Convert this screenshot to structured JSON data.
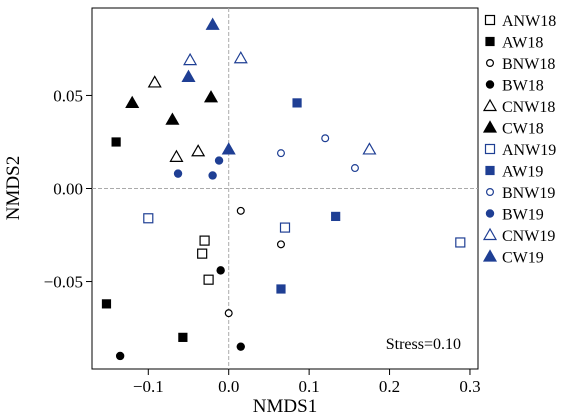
{
  "chart_data": {
    "type": "scatter",
    "title": "",
    "xlabel": "NMDS1",
    "ylabel": "NMDS2",
    "xlim": [
      -0.17,
      0.31
    ],
    "ylim": [
      -0.097,
      0.097
    ],
    "xticks": [
      -0.1,
      0.0,
      0.1,
      0.2,
      0.3
    ],
    "xtick_labels": [
      "−0.1",
      "0.0",
      "0.1",
      "0.2",
      "0.3"
    ],
    "yticks": [
      -0.05,
      0.0,
      0.05
    ],
    "ytick_labels": [
      "−0.05",
      "0.00",
      "0.05"
    ],
    "grid": false,
    "reference_lines": [
      0,
      0
    ],
    "legend_position": "right",
    "annotation": "Stress=0.10",
    "series": [
      {
        "name": "ANW18",
        "marker": "square",
        "filled": false,
        "color": "#000000",
        "points": [
          [
            -0.025,
            -0.049
          ],
          [
            -0.033,
            -0.035
          ],
          [
            -0.03,
            -0.028
          ]
        ]
      },
      {
        "name": "AW18",
        "marker": "square",
        "filled": true,
        "color": "#000000",
        "points": [
          [
            -0.152,
            -0.062
          ],
          [
            -0.14,
            0.025
          ],
          [
            -0.057,
            -0.08
          ]
        ]
      },
      {
        "name": "BNW18",
        "marker": "circle",
        "filled": false,
        "color": "#000000",
        "points": [
          [
            0.015,
            -0.012
          ],
          [
            0.065,
            -0.03
          ],
          [
            0.0,
            -0.067
          ]
        ]
      },
      {
        "name": "BW18",
        "marker": "circle",
        "filled": true,
        "color": "#000000",
        "points": [
          [
            -0.135,
            -0.09
          ],
          [
            -0.01,
            -0.044
          ],
          [
            0.015,
            -0.085
          ]
        ]
      },
      {
        "name": "CNW18",
        "marker": "triangle",
        "filled": false,
        "color": "#000000",
        "points": [
          [
            -0.092,
            0.057
          ],
          [
            -0.065,
            0.017
          ],
          [
            -0.038,
            0.02
          ]
        ]
      },
      {
        "name": "CW18",
        "marker": "triangle",
        "filled": true,
        "color": "#000000",
        "points": [
          [
            -0.12,
            0.046
          ],
          [
            -0.07,
            0.037
          ],
          [
            -0.022,
            0.049
          ]
        ]
      },
      {
        "name": "ANW19",
        "marker": "square",
        "filled": false,
        "color": "#1f3f94",
        "points": [
          [
            -0.1,
            -0.016
          ],
          [
            0.07,
            -0.021
          ],
          [
            0.288,
            -0.029
          ]
        ]
      },
      {
        "name": "AW19",
        "marker": "square",
        "filled": true,
        "color": "#1f3f94",
        "points": [
          [
            0.085,
            0.046
          ],
          [
            0.133,
            -0.015
          ],
          [
            0.065,
            -0.054
          ]
        ]
      },
      {
        "name": "BNW19",
        "marker": "circle",
        "filled": false,
        "color": "#1f3f94",
        "points": [
          [
            0.065,
            0.019
          ],
          [
            0.12,
            0.027
          ],
          [
            0.157,
            0.011
          ]
        ]
      },
      {
        "name": "BW19",
        "marker": "circle",
        "filled": true,
        "color": "#1f3f94",
        "points": [
          [
            -0.063,
            0.008
          ],
          [
            -0.02,
            0.007
          ],
          [
            -0.012,
            0.015
          ]
        ]
      },
      {
        "name": "CNW19",
        "marker": "triangle",
        "filled": false,
        "color": "#1f3f94",
        "points": [
          [
            -0.048,
            0.069
          ],
          [
            0.015,
            0.07
          ],
          [
            0.175,
            0.021
          ]
        ]
      },
      {
        "name": "CW19",
        "marker": "triangle",
        "filled": true,
        "color": "#1f3f94",
        "points": [
          [
            -0.02,
            0.088
          ],
          [
            -0.05,
            0.06
          ],
          [
            0.0,
            0.021
          ]
        ]
      }
    ]
  },
  "colors": {
    "black": "#000000",
    "blue": "#1f3f94",
    "ref_line": "#aaaaaa"
  }
}
